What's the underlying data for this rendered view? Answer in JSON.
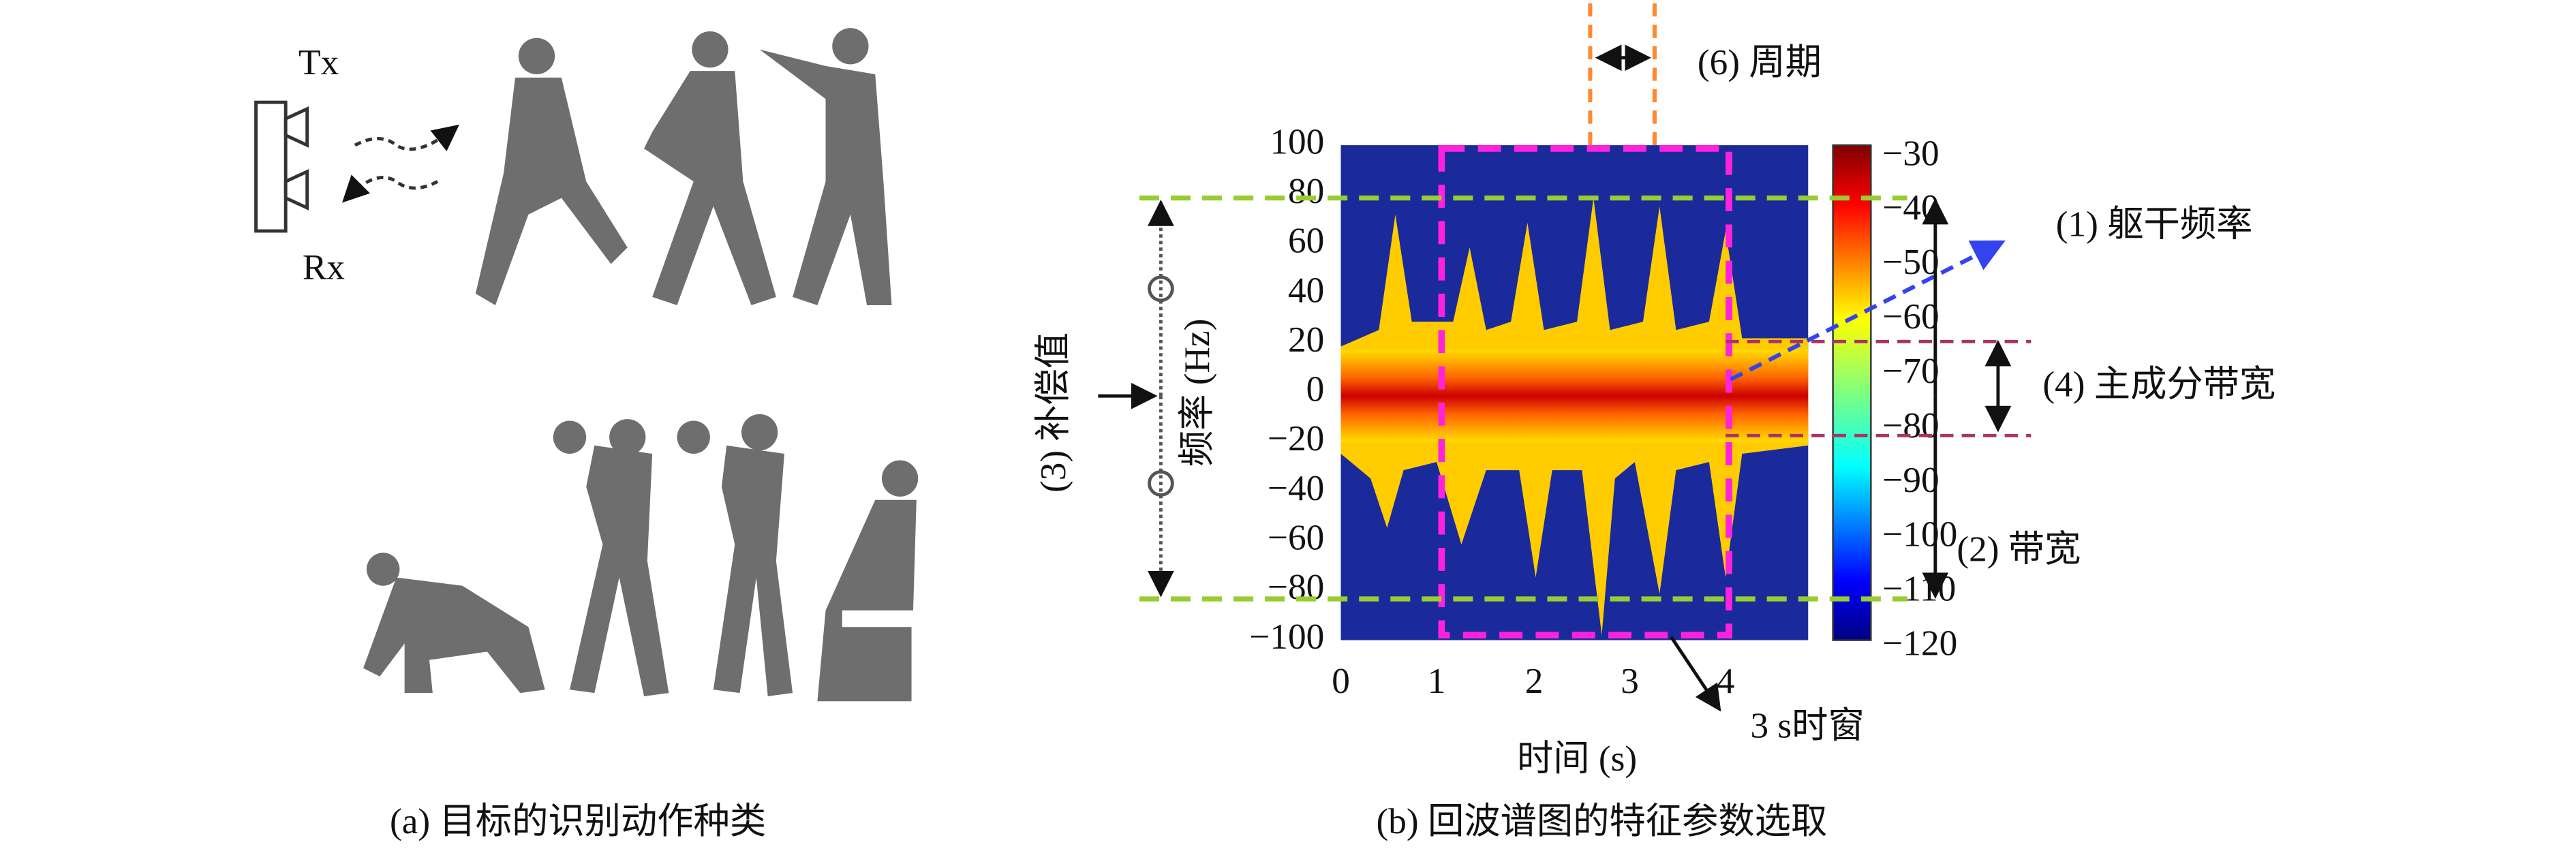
{
  "panel_a": {
    "tx": "Tx",
    "rx": "Rx",
    "caption": "(a) 目标的识别动作种类"
  },
  "panel_b": {
    "caption": "(b) 回波谱图的特征参数选取",
    "x_label": "时间 (s)",
    "y_label": "频率 (Hz)",
    "x_ticks": [
      "0",
      "1",
      "2",
      "3",
      "4"
    ],
    "y_ticks": [
      "100",
      "80",
      "60",
      "40",
      "20",
      "0",
      "−20",
      "−40",
      "−60",
      "−80",
      "−100"
    ],
    "colorbar_ticks": [
      "−30",
      "−40",
      "−50",
      "−60",
      "−70",
      "−80",
      "−90",
      "−100",
      "−110",
      "−120"
    ],
    "annotations": {
      "period": "(6) 周期",
      "torso_frequency": "(1) 躯干频率",
      "main_bandwidth": "(4) 主成分带宽",
      "bandwidth": "(2) 带宽",
      "compensation": "(3) 补偿值",
      "time_window": "3 s时窗"
    }
  }
}
